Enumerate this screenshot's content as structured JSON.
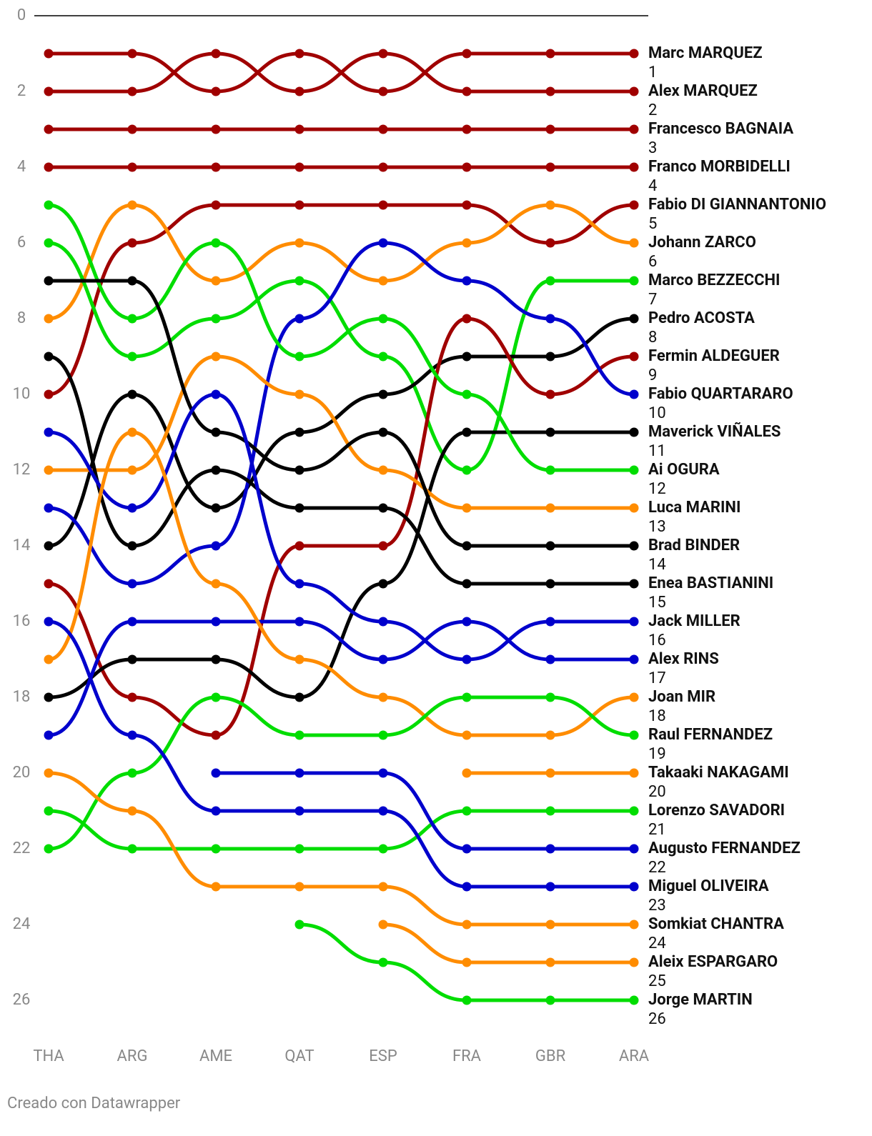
{
  "chart_data": {
    "type": "bump",
    "categories": [
      "THA",
      "ARG",
      "AME",
      "QAT",
      "ESP",
      "FRA",
      "GBR",
      "ARA"
    ],
    "ylim": [
      0,
      27
    ],
    "yticks": [
      0,
      2,
      4,
      6,
      8,
      10,
      12,
      14,
      16,
      18,
      20,
      22,
      24,
      26
    ],
    "y_inverted": true,
    "series": [
      {
        "name": "Marc MARQUEZ",
        "color": "#a00000",
        "values": [
          1,
          1,
          2,
          1,
          2,
          1,
          1,
          1
        ]
      },
      {
        "name": "Alex MARQUEZ",
        "color": "#a00000",
        "values": [
          2,
          2,
          1,
          2,
          1,
          2,
          2,
          2
        ]
      },
      {
        "name": "Francesco BAGNAIA",
        "color": "#a00000",
        "values": [
          3,
          3,
          3,
          3,
          3,
          3,
          3,
          3
        ]
      },
      {
        "name": "Franco MORBIDELLI",
        "color": "#a00000",
        "values": [
          4,
          4,
          4,
          4,
          4,
          4,
          4,
          4
        ]
      },
      {
        "name": "Fabio DI GIANNANTONIO",
        "color": "#a00000",
        "values": [
          10,
          6,
          5,
          5,
          5,
          5,
          6,
          5
        ]
      },
      {
        "name": "Johann ZARCO",
        "color": "#ff8c00",
        "values": [
          8,
          5,
          7,
          6,
          7,
          6,
          5,
          6
        ]
      },
      {
        "name": "Marco BEZZECCHI",
        "color": "#00dd00",
        "values": [
          6,
          9,
          8,
          7,
          9,
          12,
          7,
          7
        ]
      },
      {
        "name": "Pedro ACOSTA",
        "color": "#000000",
        "values": [
          14,
          10,
          13,
          11,
          10,
          9,
          9,
          8
        ]
      },
      {
        "name": "Fermin ALDEGUER",
        "color": "#a00000",
        "values": [
          15,
          18,
          19,
          14,
          14,
          8,
          10,
          9
        ]
      },
      {
        "name": "Fabio QUARTARARO",
        "color": "#0000cc",
        "values": [
          13,
          15,
          14,
          8,
          6,
          7,
          8,
          10
        ]
      },
      {
        "name": "Maverick VIÑALES",
        "color": "#000000",
        "values": [
          18,
          17,
          17,
          18,
          15,
          11,
          11,
          11
        ]
      },
      {
        "name": "Ai OGURA",
        "color": "#00dd00",
        "values": [
          5,
          8,
          6,
          9,
          8,
          10,
          12,
          12
        ]
      },
      {
        "name": "Luca MARINI",
        "color": "#ff8c00",
        "values": [
          12,
          12,
          9,
          10,
          12,
          13,
          13,
          13
        ]
      },
      {
        "name": "Brad BINDER",
        "color": "#000000",
        "values": [
          7,
          7,
          11,
          12,
          11,
          14,
          14,
          14
        ]
      },
      {
        "name": "Enea BASTIANINI",
        "color": "#000000",
        "values": [
          9,
          14,
          12,
          13,
          13,
          15,
          15,
          15
        ]
      },
      {
        "name": "Jack MILLER",
        "color": "#0000cc",
        "values": [
          11,
          13,
          10,
          15,
          16,
          17,
          16,
          16
        ]
      },
      {
        "name": "Alex RINS",
        "color": "#0000cc",
        "values": [
          19,
          16,
          16,
          16,
          17,
          16,
          17,
          17
        ]
      },
      {
        "name": "Joan MIR",
        "color": "#ff8c00",
        "values": [
          17,
          11,
          15,
          17,
          18,
          19,
          19,
          18
        ]
      },
      {
        "name": "Raul FERNANDEZ",
        "color": "#00dd00",
        "values": [
          22,
          20,
          18,
          19,
          19,
          18,
          18,
          19
        ]
      },
      {
        "name": "Takaaki NAKAGAMI",
        "color": "#ff8c00",
        "values": [
          null,
          null,
          null,
          null,
          null,
          20,
          20,
          20
        ]
      },
      {
        "name": "Lorenzo SAVADORI",
        "color": "#00dd00",
        "values": [
          21,
          22,
          22,
          22,
          22,
          21,
          21,
          21
        ]
      },
      {
        "name": "Augusto FERNANDEZ",
        "color": "#0000cc",
        "values": [
          null,
          null,
          20,
          20,
          20,
          22,
          22,
          22
        ]
      },
      {
        "name": "Miguel OLIVEIRA",
        "color": "#0000cc",
        "values": [
          16,
          19,
          21,
          21,
          21,
          23,
          23,
          23
        ]
      },
      {
        "name": "Somkiat CHANTRA",
        "color": "#ff8c00",
        "values": [
          20,
          21,
          23,
          23,
          23,
          24,
          24,
          24
        ]
      },
      {
        "name": "Aleix ESPARGARO",
        "color": "#ff8c00",
        "values": [
          null,
          null,
          null,
          null,
          24,
          25,
          25,
          25
        ]
      },
      {
        "name": "Jorge MARTIN",
        "color": "#00dd00",
        "values": [
          null,
          null,
          null,
          24,
          25,
          26,
          26,
          26
        ]
      }
    ],
    "footer": "Creado con Datawrapper"
  }
}
